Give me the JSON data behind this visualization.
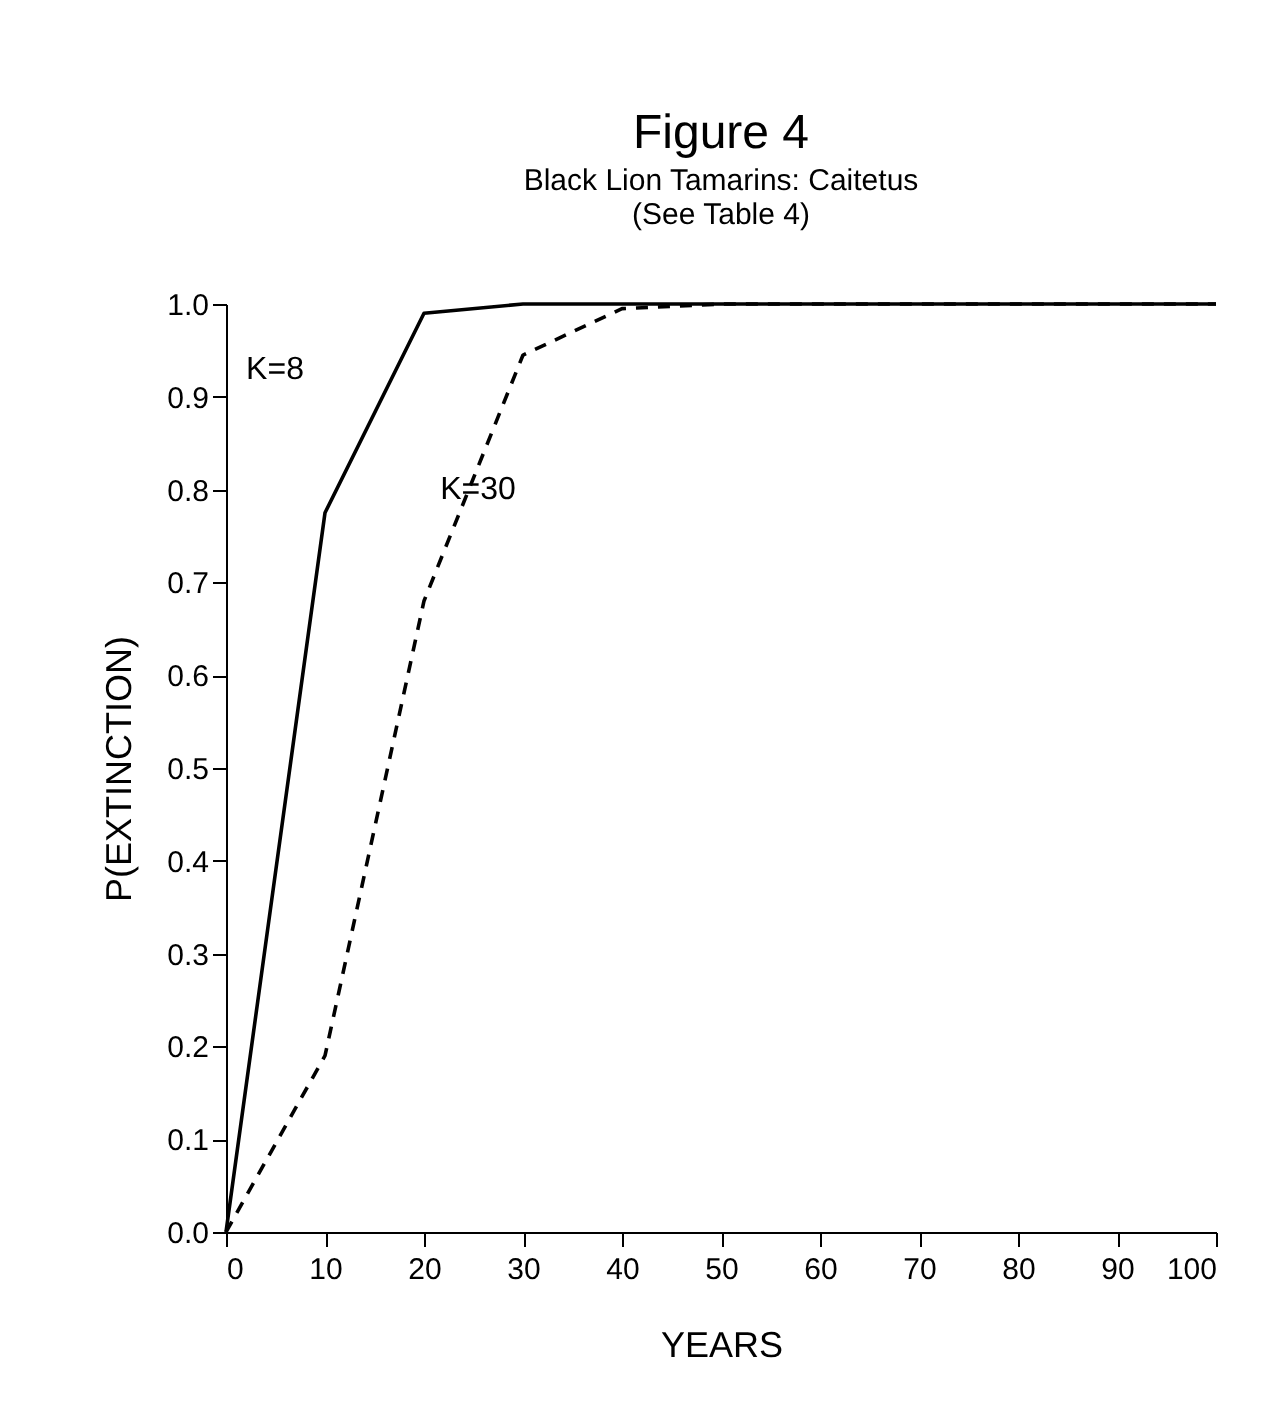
{
  "chart_data": {
    "type": "line",
    "title": "Figure 4",
    "subtitle": "Black Lion Tamarins: Caitetus\n(See Table 4)",
    "xlabel": "YEARS",
    "ylabel": "P(EXTINCTION)",
    "x": [
      0,
      10,
      20,
      30,
      40,
      50,
      60,
      70,
      80,
      90,
      100
    ],
    "series": [
      {
        "name": "K=8",
        "color": "#000000",
        "line_style": "solid",
        "values": [
          0.0,
          0.775,
          0.99,
          1.0,
          1.0,
          1.0,
          1.0,
          1.0,
          1.0,
          1.0,
          1.0
        ]
      },
      {
        "name": "K=30",
        "color": "#000000",
        "line_style": "dashed",
        "values": [
          0.0,
          0.19,
          0.68,
          0.945,
          0.995,
          1.0,
          1.0,
          1.0,
          1.0,
          1.0,
          1.0
        ]
      }
    ],
    "xlim": [
      0,
      100
    ],
    "ylim": [
      0,
      1.0
    ],
    "xticks": [
      0,
      10,
      20,
      30,
      40,
      50,
      60,
      70,
      80,
      90,
      100
    ],
    "yticks": [
      {
        "value": 0,
        "label": "0.0"
      },
      0.1,
      0.2,
      0.3,
      0.4,
      0.5,
      0.6,
      0.7,
      0.8,
      0.9,
      {
        "value": 1.0,
        "label": "1.0"
      }
    ],
    "grid": false,
    "marker": "none"
  }
}
